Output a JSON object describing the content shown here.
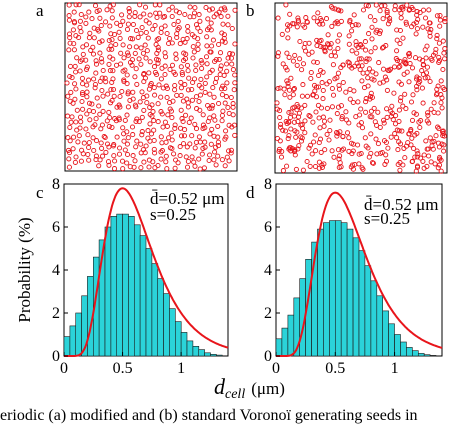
{
  "panels": [
    {
      "label": "a",
      "kind": "scatter",
      "pattern": "periodic",
      "marker_color": "#e8151b"
    },
    {
      "label": "b",
      "kind": "scatter",
      "pattern": "random",
      "marker_color": "#e8151b"
    },
    {
      "label": "c",
      "kind": "histogram",
      "dbar": "d̄=0.52 μm",
      "s": "s=0.25"
    },
    {
      "label": "d",
      "kind": "histogram",
      "dbar": "d̄=0.52 μm",
      "s": "s=0.25"
    }
  ],
  "chart_data": [
    {
      "type": "scatter",
      "title": "a",
      "description_points": "periodic modified Voronoi seeds",
      "xlim": [
        0,
        1
      ],
      "ylim": [
        0,
        1
      ],
      "marker": "open-circle",
      "color": "#e8151b"
    },
    {
      "type": "scatter",
      "title": "b",
      "marker": "open-circle",
      "color": "#e8151b",
      "xlim": [
        0,
        1
      ],
      "ylim": [
        0,
        1
      ]
    },
    {
      "type": "bar",
      "title": "c",
      "ylabel": "Probability (%)",
      "xlim": [
        0,
        1.4
      ],
      "ylim": [
        0,
        8
      ],
      "xticks": [
        "0",
        "0.5",
        "1"
      ],
      "yticks": [
        "0",
        "2",
        "4",
        "6",
        "8"
      ],
      "bin_width": 0.05,
      "x": [
        0.025,
        0.075,
        0.125,
        0.175,
        0.225,
        0.275,
        0.325,
        0.375,
        0.425,
        0.475,
        0.525,
        0.575,
        0.625,
        0.675,
        0.725,
        0.775,
        0.825,
        0.875,
        0.925,
        0.975,
        1.025,
        1.075,
        1.125,
        1.175,
        1.225,
        1.275,
        1.325
      ],
      "values": [
        0.9,
        1.4,
        2.0,
        2.8,
        3.7,
        4.6,
        5.4,
        6.0,
        6.5,
        6.6,
        6.6,
        6.5,
        6.1,
        5.6,
        5.0,
        4.3,
        3.6,
        2.9,
        2.2,
        1.6,
        1.1,
        0.7,
        0.45,
        0.3,
        0.15,
        0.08,
        0.04
      ],
      "fit_curve": {
        "type": "lognormal",
        "color": "#e8151b",
        "peak_x": 0.5,
        "peak_y": 7.8
      },
      "bar_color": "#2bd3d9",
      "annotations": [
        "d̄=0.52 μm",
        "s=0.25"
      ]
    },
    {
      "type": "bar",
      "title": "d",
      "xlim": [
        0,
        1.4
      ],
      "ylim": [
        0,
        8
      ],
      "xticks": [
        "0",
        "0.5",
        "1"
      ],
      "yticks": [
        "0",
        "2",
        "4",
        "6",
        "8"
      ],
      "bin_width": 0.05,
      "x": [
        0.025,
        0.075,
        0.125,
        0.175,
        0.225,
        0.275,
        0.325,
        0.375,
        0.425,
        0.475,
        0.525,
        0.575,
        0.625,
        0.675,
        0.725,
        0.775,
        0.825,
        0.875,
        0.925,
        0.975,
        1.025,
        1.075,
        1.125,
        1.175,
        1.225,
        1.275,
        1.325
      ],
      "values": [
        0.8,
        1.3,
        1.9,
        2.7,
        3.6,
        4.5,
        5.3,
        5.9,
        6.2,
        6.3,
        6.3,
        6.2,
        5.9,
        5.5,
        4.9,
        4.2,
        3.5,
        2.8,
        2.1,
        1.5,
        1.0,
        0.65,
        0.4,
        0.25,
        0.12,
        0.06,
        0.03
      ],
      "fit_curve": {
        "type": "lognormal",
        "color": "#e8151b",
        "peak_x": 0.5,
        "peak_y": 7.6
      },
      "bar_color": "#2bd3d9",
      "annotations": [
        "d̄=0.52 μm",
        "s=0.25"
      ]
    }
  ],
  "xlabel_main": "d",
  "xlabel_sub": "cell",
  "xlabel_unit": "(μm)",
  "ylabel": "Probability (%)",
  "caption_fragment": "eriodic (a) modified and (b) standard Voronoï generating seeds in"
}
